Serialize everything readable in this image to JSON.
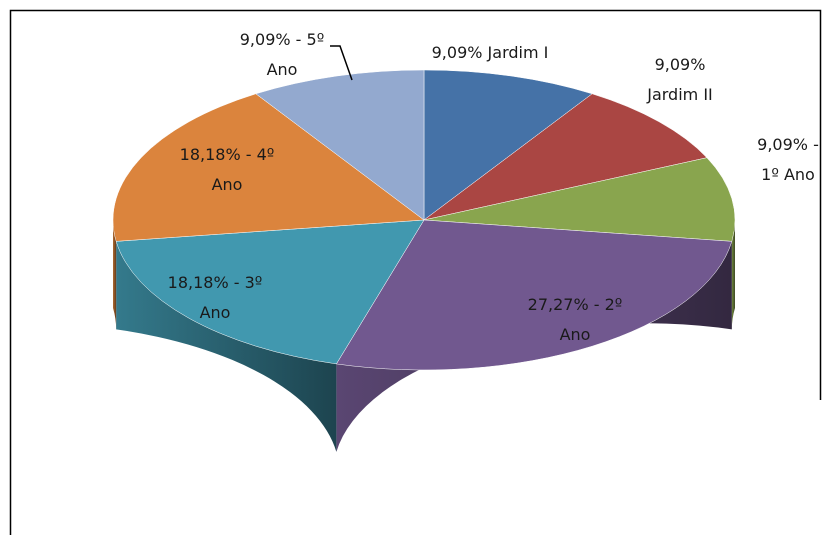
{
  "chart_data": {
    "type": "pie3d",
    "values": [
      9.09,
      9.09,
      9.09,
      27.27,
      18.18,
      18.18,
      9.09
    ],
    "value_labels": [
      "9,09% Jardim I",
      "9,09%\nJardim II",
      "9,09% -\n1º Ano",
      "27,27% - 2º\nAno",
      "18,18%  - 3º\nAno",
      "18,18% - 4º\nAno",
      "9,09% - 5º\nAno"
    ],
    "colors": [
      "#4572a7",
      "#aa4643",
      "#89a54e",
      "#71588f",
      "#4198af",
      "#db843d",
      "#93a9cf"
    ]
  }
}
